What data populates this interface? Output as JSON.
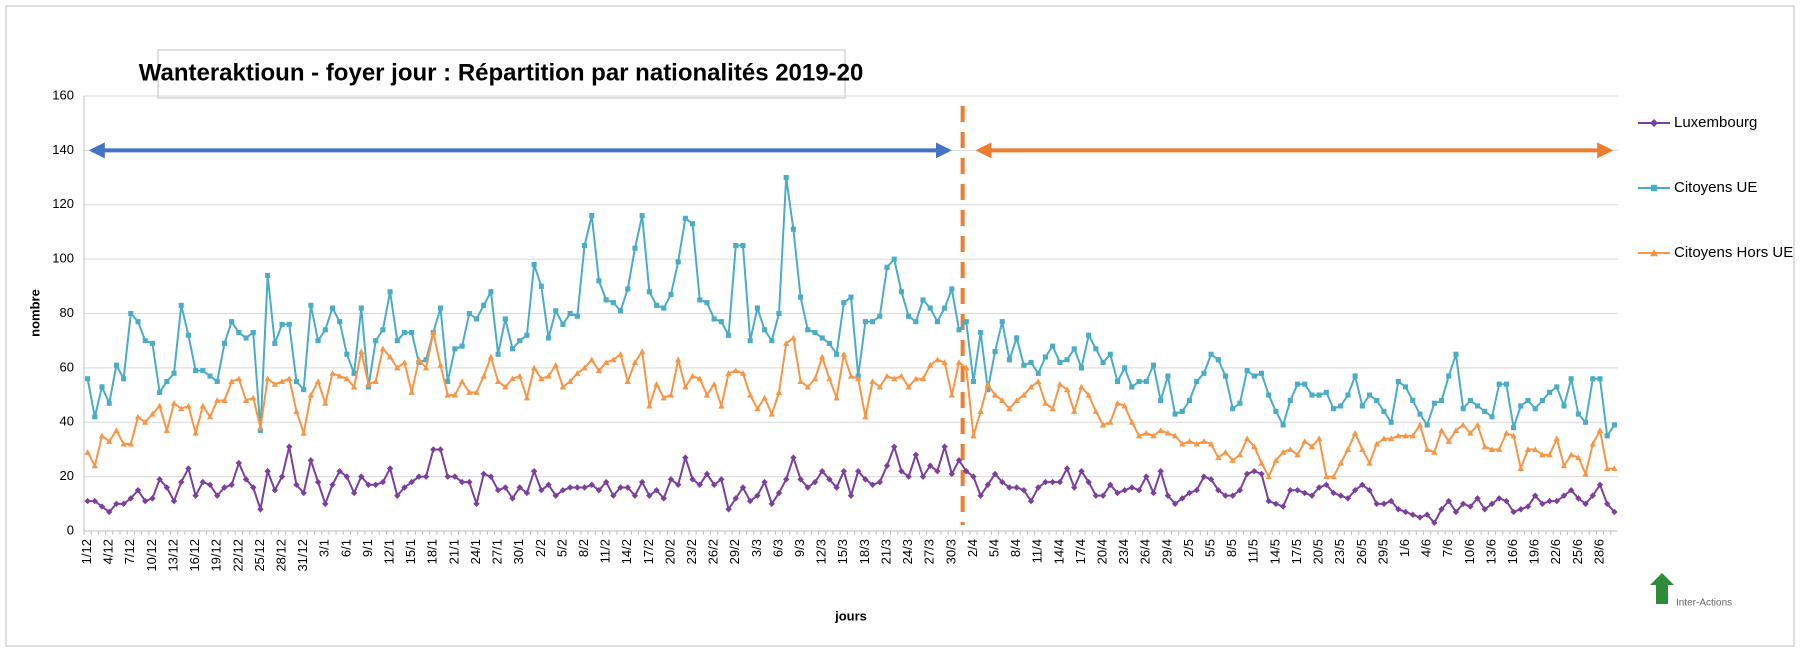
{
  "chart_data": {
    "type": "line",
    "title": "Wanteraktioun - foyer jour : Répartition par nationalités 2019-20",
    "y_label": "nombre",
    "x_label": "jours",
    "logo": "Inter-Actions",
    "ylim": [
      0,
      160
    ],
    "yticks": [
      0,
      20,
      40,
      60,
      80,
      100,
      120,
      140,
      160
    ],
    "grid": true,
    "legend": "right",
    "categories": [
      "1/12",
      null,
      null,
      "4/12",
      null,
      null,
      "7/12",
      null,
      null,
      "10/12",
      null,
      null,
      "13/12",
      null,
      null,
      "16/12",
      null,
      null,
      "19/12",
      null,
      null,
      "22/12",
      null,
      null,
      "25/12",
      null,
      null,
      "28/12",
      null,
      null,
      "31/12",
      null,
      null,
      "3/1",
      null,
      null,
      "6/1",
      null,
      null,
      "9/1",
      null,
      null,
      "12/1",
      null,
      null,
      "15/1",
      null,
      null,
      "18/1",
      null,
      null,
      "21/1",
      null,
      null,
      "24/1",
      null,
      null,
      "27/1",
      null,
      null,
      "30/1",
      null,
      null,
      "2/2",
      null,
      null,
      "5/2",
      null,
      null,
      "8/2",
      null,
      null,
      "11/2",
      null,
      null,
      "14/2",
      null,
      null,
      "17/2",
      null,
      null,
      "20/2",
      null,
      null,
      "23/2",
      null,
      null,
      "26/2",
      null,
      null,
      "29/2",
      null,
      null,
      "3/3",
      null,
      null,
      "6/3",
      null,
      null,
      "9/3",
      null,
      null,
      "12/3",
      null,
      null,
      "15/3",
      null,
      null,
      "18/3",
      null,
      null,
      "21/3",
      null,
      null,
      "24/3",
      null,
      null,
      "27/3",
      null,
      null,
      "30/3",
      null,
      null,
      "2/4",
      null,
      null,
      "5/4",
      null,
      null,
      "8/4",
      null,
      null,
      "11/4",
      null,
      null,
      "14/4",
      null,
      null,
      "17/4",
      null,
      null,
      "20/4",
      null,
      null,
      "23/4",
      null,
      null,
      "26/4",
      null,
      null,
      "29/4",
      null,
      null,
      "2/5",
      null,
      null,
      "5/5",
      null,
      null,
      "8/5",
      null,
      null,
      "11/5",
      null,
      null,
      "14/5",
      null,
      null,
      "17/5",
      null,
      null,
      "20/5",
      null,
      null,
      "23/5",
      null,
      null,
      "26/5",
      null,
      null,
      "29/5",
      null,
      null,
      "1/6",
      null,
      null,
      "4/6",
      null,
      null,
      "7/6",
      null,
      null,
      "10/6",
      null,
      null,
      "13/6",
      null,
      null,
      "16/6",
      null,
      null,
      "19/6",
      null,
      null,
      "22/6",
      null,
      null,
      "25/6",
      null,
      null,
      "28/6",
      null,
      null
    ],
    "series": [
      {
        "name": "Luxembourg",
        "color": "#7b3f9e",
        "marker": "diamond",
        "values": [
          11,
          11,
          9,
          7,
          10,
          10,
          12,
          15,
          11,
          12,
          19,
          16,
          11,
          18,
          23,
          13,
          18,
          17,
          13,
          16,
          17,
          25,
          19,
          16,
          8,
          22,
          15,
          20,
          31,
          17,
          14,
          26,
          18,
          10,
          17,
          22,
          20,
          14,
          20,
          17,
          17,
          18,
          23,
          13,
          16,
          18,
          20,
          20,
          30,
          30,
          20,
          20,
          18,
          18,
          10,
          21,
          20,
          15,
          16,
          12,
          16,
          14,
          22,
          15,
          17,
          13,
          15,
          16,
          16,
          16,
          17,
          15,
          18,
          13,
          16,
          16,
          13,
          18,
          13,
          15,
          12,
          19,
          17,
          27,
          19,
          17,
          21,
          17,
          19,
          8,
          12,
          16,
          11,
          13,
          18,
          10,
          14,
          19,
          27,
          19,
          16,
          18,
          22,
          19,
          16,
          22,
          13,
          22,
          19,
          17,
          18,
          24,
          31,
          22,
          20,
          28,
          20,
          24,
          22,
          31,
          21,
          26,
          22,
          20,
          13,
          17,
          21,
          18,
          16,
          16,
          15,
          11,
          16,
          18,
          18,
          18,
          23,
          16,
          22,
          18,
          13,
          13,
          17,
          14,
          15,
          16,
          15,
          20,
          14,
          22,
          13,
          10,
          12,
          14,
          15,
          20,
          19,
          15,
          13,
          13,
          15,
          21,
          22,
          21,
          11,
          10,
          9,
          15,
          15,
          14,
          13,
          16,
          17,
          14,
          13,
          12,
          15,
          17,
          15,
          10,
          10,
          11,
          8,
          7,
          6,
          5,
          6,
          3,
          8,
          11,
          7,
          10,
          9,
          12,
          8,
          10,
          12,
          11,
          7,
          8,
          9,
          13,
          10,
          11,
          11,
          13,
          15,
          12,
          10,
          13,
          17,
          10,
          7
        ]
      },
      {
        "name": "Citoyens UE",
        "color": "#4bacc6",
        "marker": "square",
        "values": [
          56,
          42,
          53,
          47,
          61,
          56,
          80,
          77,
          70,
          69,
          51,
          55,
          58,
          83,
          72,
          59,
          59,
          57,
          55,
          69,
          77,
          73,
          71,
          73,
          37,
          94,
          69,
          76,
          76,
          55,
          52,
          83,
          70,
          74,
          82,
          77,
          65,
          58,
          82,
          53,
          70,
          74,
          88,
          70,
          73,
          73,
          62,
          63,
          73,
          82,
          55,
          67,
          68,
          80,
          78,
          83,
          88,
          65,
          78,
          67,
          70,
          72,
          98,
          90,
          71,
          81,
          76,
          80,
          79,
          105,
          116,
          92,
          85,
          84,
          81,
          89,
          104,
          116,
          88,
          83,
          82,
          87,
          99,
          115,
          113,
          85,
          84,
          78,
          77,
          72,
          105,
          105,
          70,
          82,
          74,
          70,
          80,
          130,
          111,
          86,
          74,
          73,
          71,
          69,
          65,
          84,
          86,
          57,
          77,
          77,
          79,
          97,
          100,
          88,
          79,
          77,
          85,
          82,
          77,
          82,
          89,
          74,
          77,
          55,
          73,
          52,
          66,
          77,
          63,
          71,
          61,
          62,
          58,
          64,
          68,
          62,
          63,
          67,
          60,
          72,
          67,
          62,
          65,
          55,
          60,
          53,
          55,
          55,
          61,
          48,
          57,
          43,
          44,
          48,
          55,
          58,
          65,
          63,
          57,
          45,
          47,
          59,
          57,
          58,
          50,
          44,
          39,
          48,
          54,
          54,
          50,
          50,
          51,
          45,
          46,
          50,
          57,
          46,
          50,
          48,
          44,
          40,
          55,
          53,
          48,
          43,
          39,
          47,
          48,
          57,
          65,
          45,
          48,
          46,
          44,
          42,
          54,
          54,
          38,
          46,
          48,
          45,
          48,
          51,
          53,
          46,
          56,
          43,
          40,
          56,
          56,
          35,
          39
        ]
      },
      {
        "name": "Citoyens Hors UE",
        "color": "#f79646",
        "marker": "triangle",
        "values": [
          29,
          24,
          35,
          33,
          37,
          32,
          32,
          42,
          40,
          43,
          46,
          37,
          47,
          45,
          46,
          36,
          46,
          42,
          48,
          48,
          55,
          56,
          48,
          49,
          38,
          56,
          54,
          55,
          56,
          44,
          36,
          50,
          55,
          47,
          58,
          57,
          56,
          53,
          66,
          54,
          55,
          67,
          64,
          60,
          62,
          51,
          63,
          60,
          73,
          61,
          50,
          50,
          55,
          51,
          51,
          57,
          64,
          55,
          53,
          56,
          57,
          49,
          60,
          56,
          57,
          61,
          53,
          55,
          58,
          60,
          63,
          59,
          62,
          63,
          65,
          55,
          62,
          66,
          46,
          54,
          49,
          50,
          63,
          53,
          57,
          56,
          50,
          54,
          46,
          58,
          59,
          58,
          50,
          45,
          49,
          43,
          51,
          69,
          71,
          55,
          53,
          56,
          64,
          56,
          49,
          65,
          57,
          56,
          42,
          55,
          53,
          57,
          56,
          57,
          53,
          56,
          56,
          61,
          63,
          62,
          50,
          62,
          60,
          35,
          44,
          54,
          50,
          48,
          45,
          48,
          50,
          53,
          55,
          47,
          45,
          54,
          52,
          44,
          53,
          50,
          44,
          39,
          40,
          47,
          46,
          40,
          35,
          36,
          35,
          37,
          36,
          35,
          32,
          33,
          32,
          33,
          32,
          27,
          29,
          26,
          28,
          34,
          31,
          25,
          20,
          26,
          29,
          30,
          28,
          33,
          31,
          34,
          20,
          20,
          25,
          30,
          36,
          30,
          25,
          32,
          34,
          34,
          35,
          35,
          35,
          39,
          30,
          29,
          37,
          33,
          37,
          39,
          36,
          39,
          31,
          30,
          30,
          36,
          35,
          23,
          30,
          30,
          28,
          28,
          34,
          24,
          28,
          27,
          21,
          32,
          37,
          23,
          23
        ]
      }
    ]
  }
}
